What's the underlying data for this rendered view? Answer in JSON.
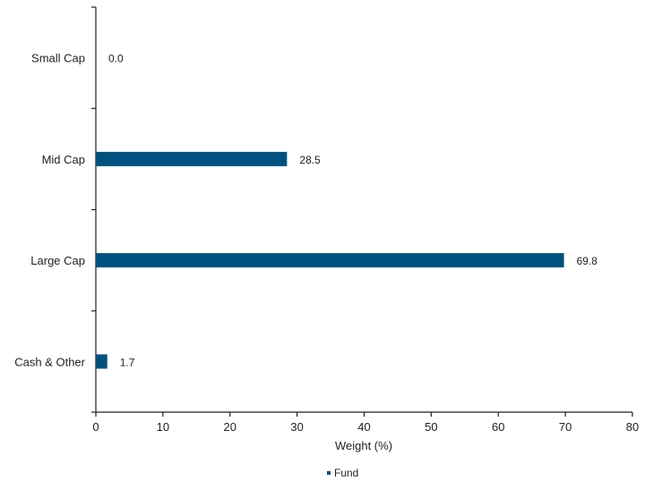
{
  "chart_data": {
    "type": "bar",
    "orientation": "horizontal",
    "categories": [
      "Small Cap",
      "Mid Cap",
      "Large Cap",
      "Cash & Other"
    ],
    "series": [
      {
        "name": "Fund",
        "values": [
          0.0,
          28.5,
          69.8,
          1.7
        ],
        "labels": [
          "0.0",
          "28.5",
          "69.8",
          "1.7"
        ]
      }
    ],
    "xlabel": "Weight (%)",
    "ylabel": "",
    "xlim": [
      0,
      80
    ],
    "xticks": [
      0,
      10,
      20,
      30,
      40,
      50,
      60,
      70,
      80
    ],
    "grid": false,
    "legend_position": "bottom",
    "colors": {
      "bar": "#00517f",
      "axis": "#222222"
    }
  }
}
